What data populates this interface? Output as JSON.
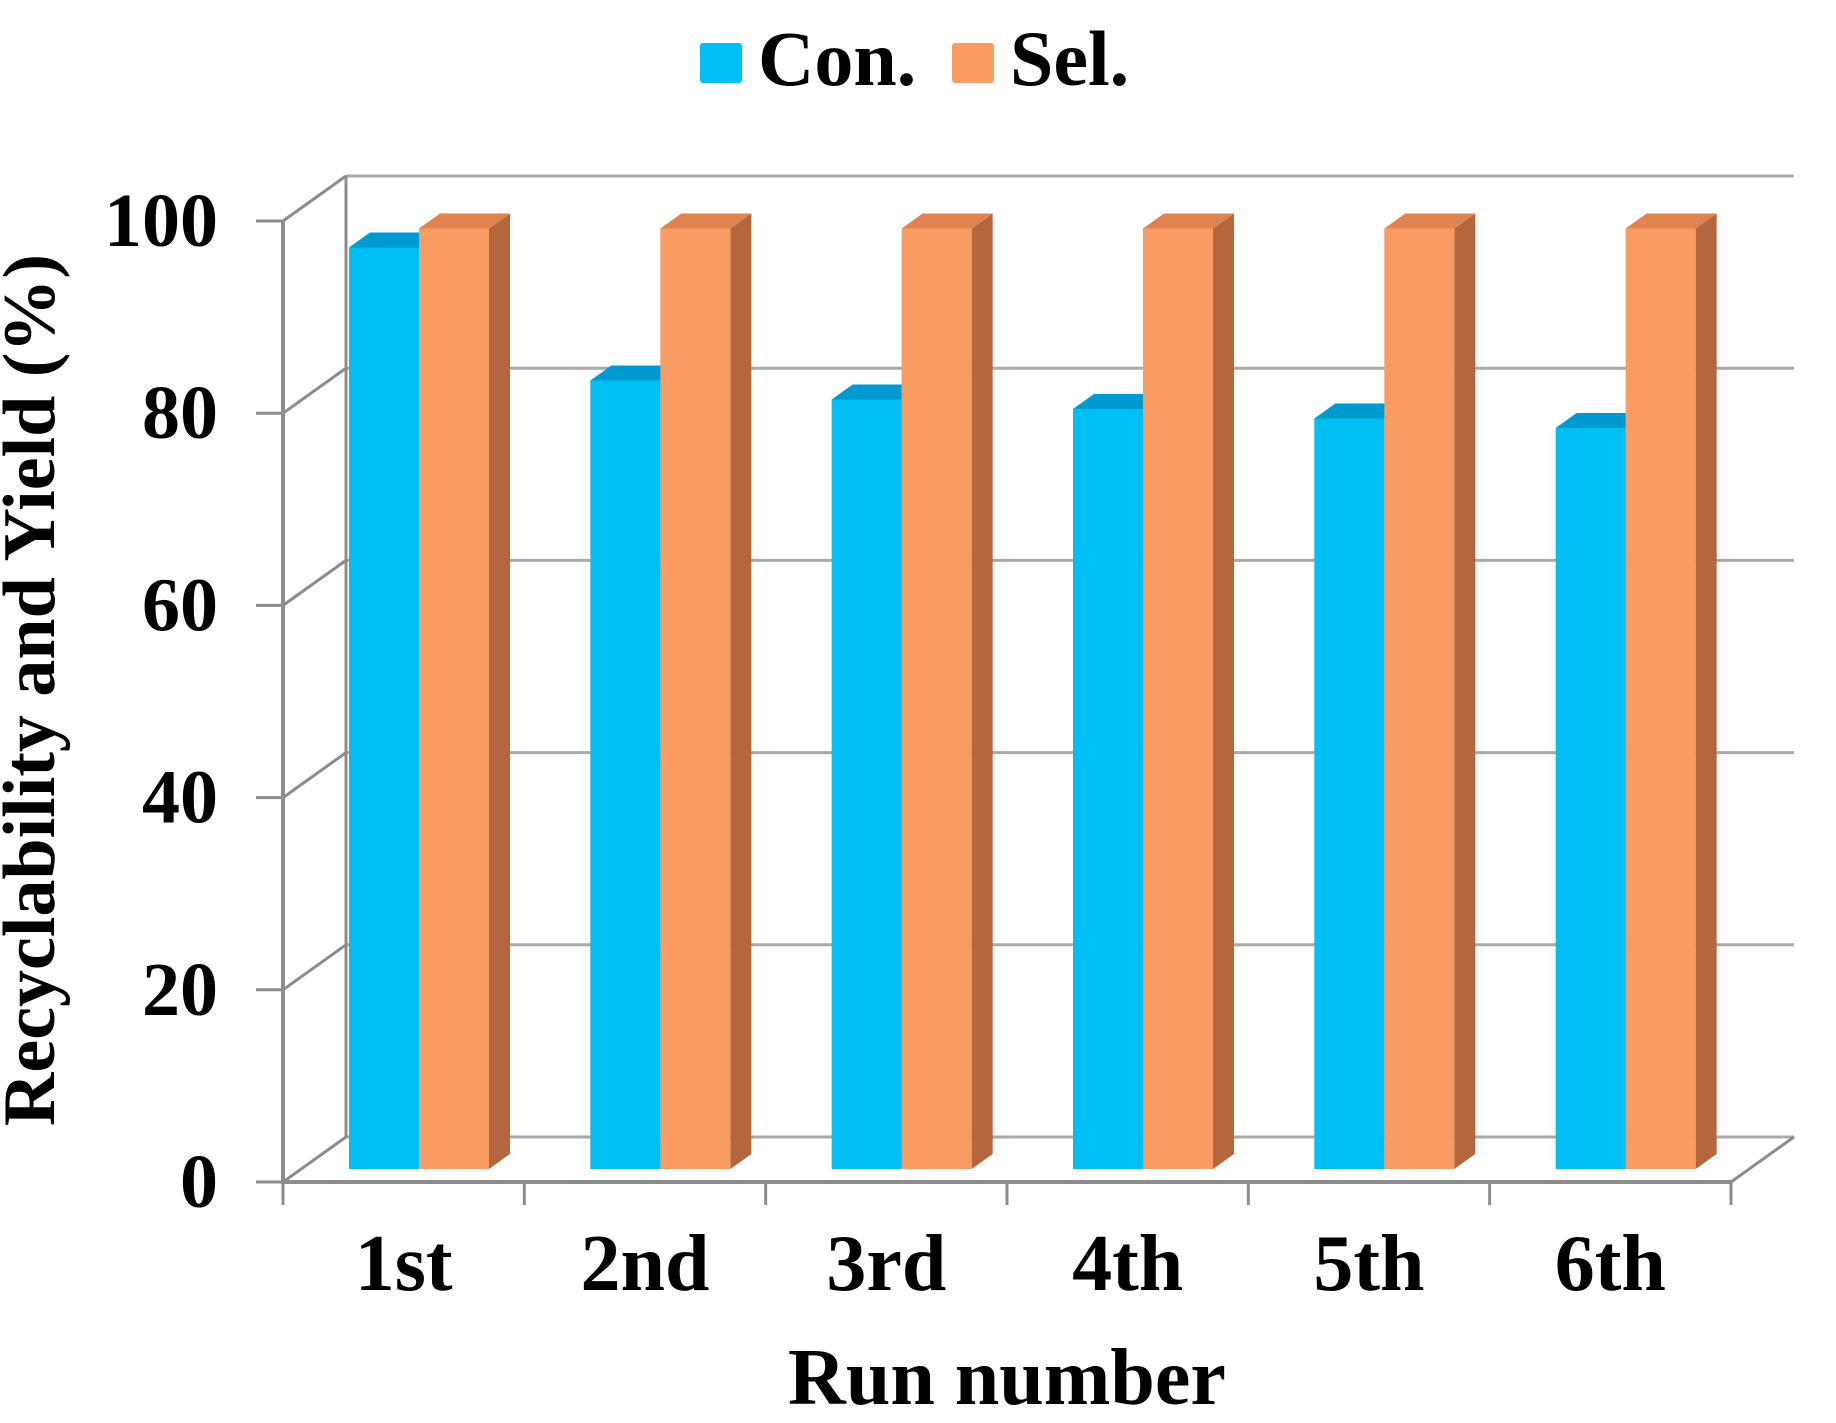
{
  "legend": {
    "position": "top",
    "items": [
      {
        "label": "Con.",
        "color": "#00BFF3"
      },
      {
        "label": "Sel.",
        "color": "#F99C64"
      }
    ]
  },
  "chart_data": {
    "type": "bar",
    "projection": "3d-clustered-column",
    "title": "",
    "categories": [
      "1st",
      "2nd",
      "3rd",
      "4th",
      "5th",
      "6th"
    ],
    "series": [
      {
        "name": "Con.",
        "color": "#00BFF3",
        "top_color": "#009AD0",
        "side_color": "#0090C4",
        "values": [
          97,
          83,
          81,
          80,
          79,
          78
        ]
      },
      {
        "name": "Sel.",
        "color": "#F99C64",
        "top_color": "#E1834E",
        "side_color": "#B4663E",
        "values": [
          99,
          99,
          99,
          99,
          99,
          99
        ]
      }
    ],
    "xlabel": "Run number",
    "ylabel": "Recyclability and Yield (%)",
    "ylim": [
      0,
      100
    ],
    "ytick_step": 20,
    "yticks": [
      0,
      20,
      40,
      60,
      80,
      100
    ],
    "grid": "horizontal-back-wall",
    "legend_position": "top-center",
    "grid_color": "#A9A9A9",
    "axis_color": "#8C8C8C",
    "text_color": "#000000",
    "background": "#FFFFFF"
  }
}
